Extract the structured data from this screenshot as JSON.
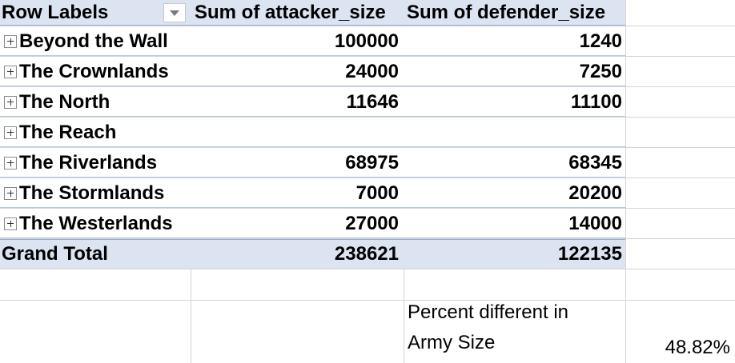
{
  "pivot": {
    "headers": {
      "row_labels": "Row Labels",
      "attacker": "Sum of attacker_size",
      "defender": "Sum of defender_size",
      "filter_icon": "dropdown-arrow-icon"
    },
    "rows": [
      {
        "label": "Beyond the Wall",
        "attacker": "100000",
        "defender": "1240"
      },
      {
        "label": "The Crownlands",
        "attacker": "24000",
        "defender": "7250"
      },
      {
        "label": "The North",
        "attacker": "11646",
        "defender": "11100"
      },
      {
        "label": "The Reach",
        "attacker": "",
        "defender": ""
      },
      {
        "label": "The Riverlands",
        "attacker": "68975",
        "defender": "68345"
      },
      {
        "label": "The Stormlands",
        "attacker": "7000",
        "defender": "20200"
      },
      {
        "label": "The Westerlands",
        "attacker": "27000",
        "defender": "14000"
      }
    ],
    "grand_total": {
      "label": "Grand Total",
      "attacker": "238621",
      "defender": "122135"
    },
    "expand_icon": "expand-plus-icon"
  },
  "summary": {
    "label_line1": "Percent different in",
    "label_line2": "Army Size",
    "value": "48.82%"
  },
  "colors": {
    "header_fill": "#dce3f1",
    "header_border": "#8ea9db",
    "row_border": "#b4c6e7",
    "gridline": "#d4d4d4"
  }
}
